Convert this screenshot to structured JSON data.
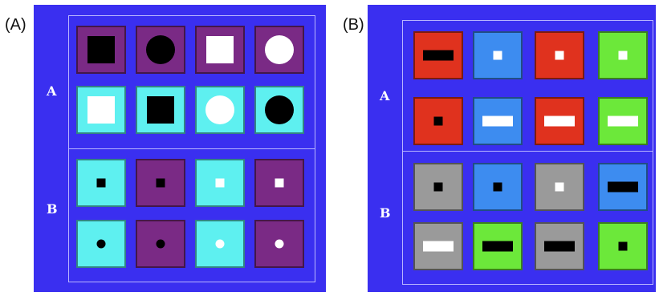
{
  "labels": {
    "panel_a": "(A)",
    "panel_b": "(B)"
  },
  "panel_a": {
    "row_labels": [
      "A",
      "B"
    ],
    "tiles": [
      {
        "bg": "#7a2a85",
        "shape": "square-lg",
        "color": "#000000"
      },
      {
        "bg": "#7a2a85",
        "shape": "circle-lg",
        "color": "#000000"
      },
      {
        "bg": "#7a2a85",
        "shape": "square-lg",
        "color": "#ffffff"
      },
      {
        "bg": "#7a2a85",
        "shape": "circle-lg",
        "color": "#ffffff"
      },
      {
        "bg": "#5ef0f0",
        "shape": "square-lg",
        "color": "#ffffff"
      },
      {
        "bg": "#5ef0f0",
        "shape": "square-lg",
        "color": "#000000"
      },
      {
        "bg": "#5ef0f0",
        "shape": "circle-lg",
        "color": "#ffffff"
      },
      {
        "bg": "#5ef0f0",
        "shape": "circle-lg",
        "color": "#000000"
      },
      {
        "bg": "#5ef0f0",
        "shape": "square-sm",
        "color": "#000000"
      },
      {
        "bg": "#7a2a85",
        "shape": "square-sm",
        "color": "#000000"
      },
      {
        "bg": "#5ef0f0",
        "shape": "square-sm",
        "color": "#ffffff"
      },
      {
        "bg": "#7a2a85",
        "shape": "square-sm",
        "color": "#ffffff"
      },
      {
        "bg": "#5ef0f0",
        "shape": "circle-sm",
        "color": "#000000"
      },
      {
        "bg": "#7a2a85",
        "shape": "circle-sm",
        "color": "#000000"
      },
      {
        "bg": "#5ef0f0",
        "shape": "circle-sm",
        "color": "#ffffff"
      },
      {
        "bg": "#7a2a85",
        "shape": "circle-sm",
        "color": "#ffffff"
      }
    ]
  },
  "panel_b": {
    "row_labels": [
      "A",
      "B"
    ],
    "tiles": [
      {
        "bg": "#e0321e",
        "shape": "bar",
        "color": "#000000"
      },
      {
        "bg": "#3d8cf0",
        "shape": "square-sm",
        "color": "#ffffff"
      },
      {
        "bg": "#e0321e",
        "shape": "square-sm",
        "color": "#ffffff"
      },
      {
        "bg": "#6ce83a",
        "shape": "square-sm",
        "color": "#ffffff"
      },
      {
        "bg": "#e0321e",
        "shape": "square-sm",
        "color": "#000000"
      },
      {
        "bg": "#3d8cf0",
        "shape": "bar",
        "color": "#ffffff"
      },
      {
        "bg": "#e0321e",
        "shape": "bar",
        "color": "#ffffff"
      },
      {
        "bg": "#6ce83a",
        "shape": "bar",
        "color": "#ffffff"
      },
      {
        "bg": "#9a9a9a",
        "shape": "square-sm",
        "color": "#000000"
      },
      {
        "bg": "#3d8cf0",
        "shape": "square-sm",
        "color": "#000000"
      },
      {
        "bg": "#9a9a9a",
        "shape": "square-sm",
        "color": "#ffffff"
      },
      {
        "bg": "#3d8cf0",
        "shape": "bar",
        "color": "#000000"
      },
      {
        "bg": "#9a9a9a",
        "shape": "bar",
        "color": "#ffffff"
      },
      {
        "bg": "#6ce83a",
        "shape": "bar",
        "color": "#000000"
      },
      {
        "bg": "#9a9a9a",
        "shape": "bar",
        "color": "#000000"
      },
      {
        "bg": "#6ce83a",
        "shape": "square-sm",
        "color": "#000000"
      }
    ]
  }
}
